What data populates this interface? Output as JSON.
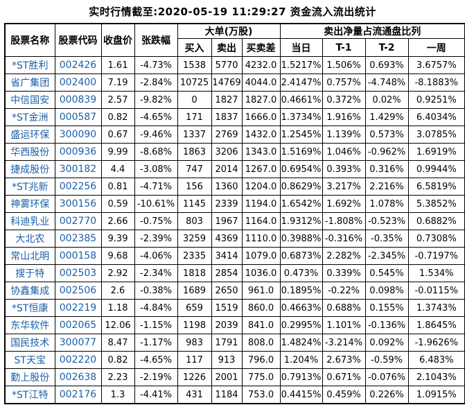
{
  "title": "实时行情截至:2020-05-19 11:29:27 资金流入流出统计",
  "colors": {
    "link_blue": "#1a5fa6",
    "border": "#000000",
    "background": "#ffffff",
    "text": "#000000"
  },
  "table": {
    "headers": {
      "stock_name": "股票名称",
      "stock_code": "股票代码",
      "close_price": "收盘价",
      "change_pct": "张跌幅",
      "large_order_group": "大单(万股)",
      "buy": "买入",
      "sell": "卖出",
      "buy_sell_diff": "买卖差",
      "net_sell_group": "卖出净量占流通盘比列",
      "day": "当日",
      "t1": "T-1",
      "t2": "T-2",
      "week": "一周"
    },
    "rows": [
      [
        "*ST胜利",
        "002426",
        "1.61",
        "-4.73%",
        "1538",
        "5770",
        "4232.0",
        "1.5217%",
        "1.506%",
        "0.693%",
        "3.6757%"
      ],
      [
        "省广集团",
        "002400",
        "7.19",
        "-2.84%",
        "10725",
        "14769",
        "4044.0",
        "2.4147%",
        "0.757%",
        "-4.748%",
        "-8.1883%"
      ],
      [
        "中信国安",
        "000839",
        "2.57",
        "-9.82%",
        "0",
        "1827",
        "1827.0",
        "0.4661%",
        "0.372%",
        "0.02%",
        "0.9251%"
      ],
      [
        "*ST金洲",
        "000587",
        "0.82",
        "-4.65%",
        "171",
        "1837",
        "1666.0",
        "1.3734%",
        "1.916%",
        "1.429%",
        "6.4034%"
      ],
      [
        "盛运环保",
        "300090",
        "0.67",
        "-9.46%",
        "1337",
        "2769",
        "1432.0",
        "1.2545%",
        "1.139%",
        "0.573%",
        "3.0785%"
      ],
      [
        "华西股份",
        "000936",
        "9.99",
        "-8.68%",
        "1863",
        "3206",
        "1343.0",
        "1.5169%",
        "1.046%",
        "-0.962%",
        "1.6919%"
      ],
      [
        "捷成股份",
        "300182",
        "4.4",
        "-3.08%",
        "747",
        "2014",
        "1267.0",
        "0.6954%",
        "0.393%",
        "0.316%",
        "0.9944%"
      ],
      [
        "*ST兆新",
        "002256",
        "0.81",
        "-4.71%",
        "156",
        "1360",
        "1204.0",
        "0.8629%",
        "3.217%",
        "2.216%",
        "6.5819%"
      ],
      [
        "神雾环保",
        "300156",
        "0.59",
        "-10.61%",
        "1145",
        "2339",
        "1194.0",
        "1.6542%",
        "1.692%",
        "1.078%",
        "5.3852%"
      ],
      [
        "科迪乳业",
        "002770",
        "2.66",
        "-0.75%",
        "803",
        "1967",
        "1164.0",
        "1.9312%",
        "-1.808%",
        "-0.523%",
        "0.6882%"
      ],
      [
        "大北农",
        "002385",
        "9.39",
        "-2.39%",
        "3259",
        "4369",
        "1110.0",
        "0.3988%",
        "-0.316%",
        "-0.35%",
        "0.7308%"
      ],
      [
        "常山北明",
        "000158",
        "9.68",
        "-4.06%",
        "2335",
        "3414",
        "1079.0",
        "0.6873%",
        "2.282%",
        "-2.345%",
        "-0.7197%"
      ],
      [
        "搜于特",
        "002503",
        "2.92",
        "-2.34%",
        "1818",
        "2854",
        "1036.0",
        "0.473%",
        "0.339%",
        "0.545%",
        "1.534%"
      ],
      [
        "协鑫集成",
        "002506",
        "2.6",
        "-0.38%",
        "1689",
        "2650",
        "961.0",
        "0.1895%",
        "-0.22%",
        "0.098%",
        "-0.0115%"
      ],
      [
        "*ST恒康",
        "002219",
        "1.18",
        "-4.84%",
        "659",
        "1519",
        "860.0",
        "0.4663%",
        "0.688%",
        "0.155%",
        "1.3743%"
      ],
      [
        "东华软件",
        "002065",
        "12.06",
        "-1.15%",
        "1198",
        "2039",
        "841.0",
        "0.2995%",
        "1.101%",
        "-0.136%",
        "1.8645%"
      ],
      [
        "国民技术",
        "300077",
        "8.47",
        "-1.17%",
        "983",
        "1791",
        "808.0",
        "1.4824%",
        "-3.214%",
        "0.092%",
        "-1.9626%"
      ],
      [
        "ST天宝",
        "002220",
        "0.82",
        "-4.65%",
        "117",
        "913",
        "796.0",
        "1.204%",
        "2.673%",
        "-0.59%",
        "6.483%"
      ],
      [
        "勤上股份",
        "002638",
        "2.23",
        "-2.19%",
        "1226",
        "2001",
        "775.0",
        "0.7913%",
        "0.671%",
        "-0.076%",
        "2.1043%"
      ],
      [
        "*ST江特",
        "002176",
        "1.3",
        "-4.41%",
        "431",
        "1184",
        "753.0",
        "0.4415%",
        "0.459%",
        "0.226%",
        "1.0915%"
      ]
    ]
  }
}
